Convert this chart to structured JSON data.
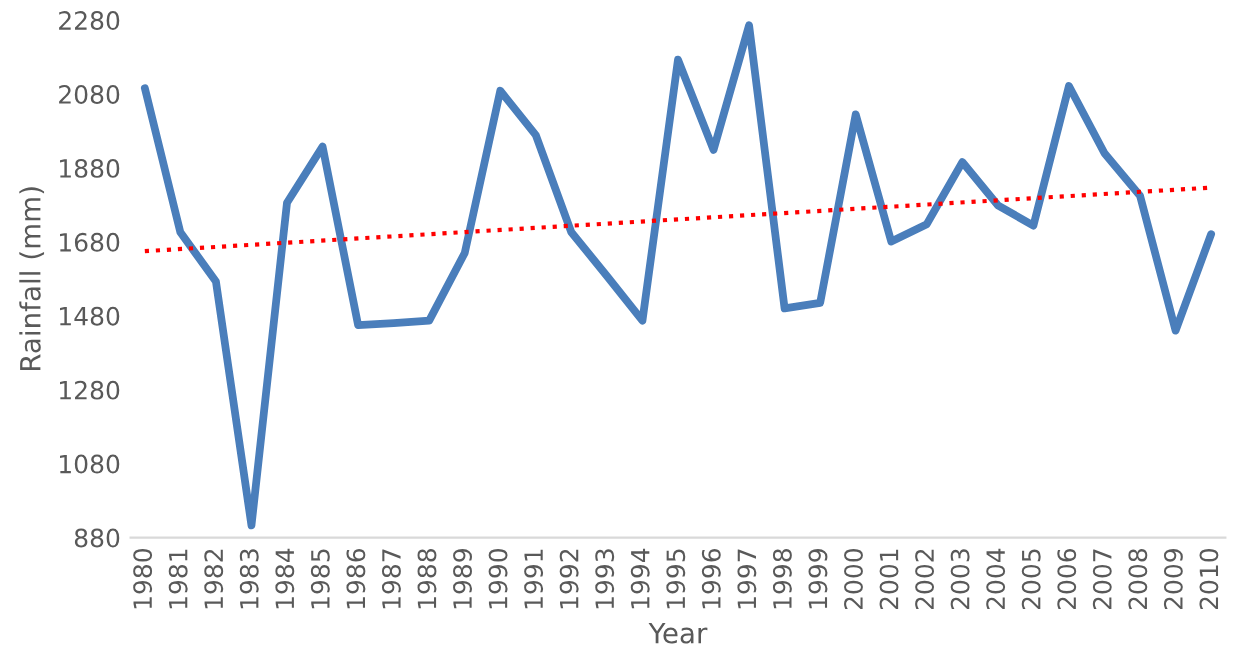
{
  "chart_data": {
    "type": "line",
    "xlabel": "Year",
    "ylabel": "Rainfall (mm)",
    "x": [
      1980,
      1981,
      1982,
      1983,
      1984,
      1985,
      1986,
      1987,
      1988,
      1989,
      1990,
      1991,
      1992,
      1993,
      1994,
      1995,
      1996,
      1997,
      1998,
      1999,
      2000,
      2001,
      2002,
      2003,
      2004,
      2005,
      2006,
      2007,
      2008,
      2009,
      2010
    ],
    "series": [
      {
        "color": "#4a7ebb",
        "values": [
          2096,
          1706,
          1573,
          913,
          1786,
          1938,
          1455,
          1460,
          1467,
          1650,
          2089,
          1969,
          1706,
          1588,
          1467,
          2173,
          1929,
          2266,
          1500,
          1515,
          2025,
          1681,
          1728,
          1896,
          1779,
          1724,
          2102,
          1920,
          1805,
          1440,
          1701
        ]
      },
      {
        "type": "line",
        "color": "#ff0000",
        "line_style": "dotted",
        "x": [
          1980,
          2010
        ],
        "values": [
          1655,
          1827
        ]
      }
    ],
    "xlim": [
      1979.6,
      2010.4
    ],
    "xticks": [
      1980,
      1981,
      1982,
      1983,
      1984,
      1985,
      1986,
      1987,
      1988,
      1989,
      1990,
      1991,
      1992,
      1993,
      1994,
      1995,
      1996,
      1997,
      1998,
      1999,
      2000,
      2001,
      2002,
      2003,
      2004,
      2005,
      2006,
      2007,
      2008,
      2009,
      2010
    ],
    "ylim": [
      880,
      2280
    ],
    "yticks": [
      880,
      1080,
      1280,
      1480,
      1680,
      1880,
      2080,
      2280
    ],
    "grid": false,
    "legend": false
  }
}
